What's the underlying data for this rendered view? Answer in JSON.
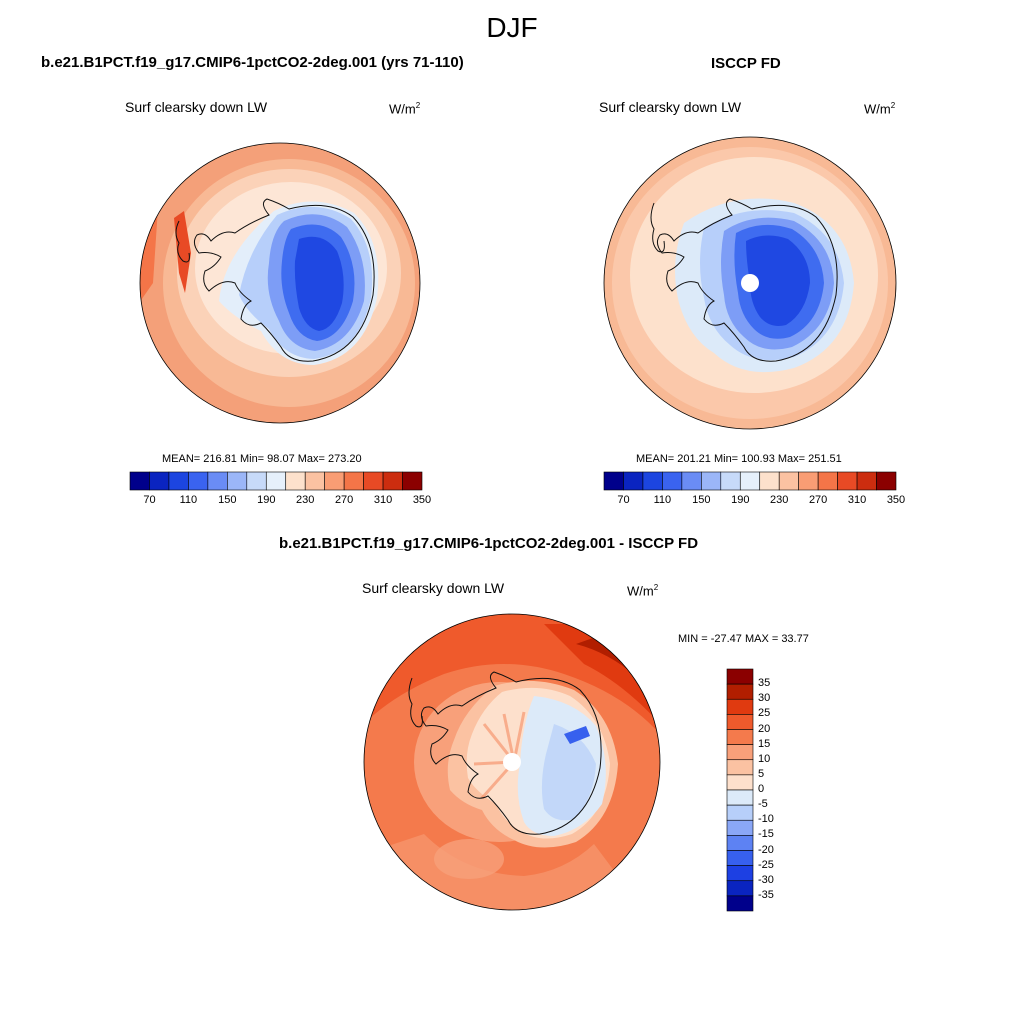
{
  "season": "DJF",
  "colors": {
    "abs_scale": [
      "#00008b",
      "#0a24c0",
      "#1c45e0",
      "#3a63f0",
      "#6a8cf5",
      "#9bb6f8",
      "#c7daf9",
      "#e6f0fb",
      "#fde1cc",
      "#fbc2a2",
      "#f99d74",
      "#f47548",
      "#e84a25",
      "#cc2d0f",
      "#8b0000"
    ],
    "diff_scale": [
      "#00008b",
      "#0a24c0",
      "#1d40e3",
      "#3760ee",
      "#5d82f3",
      "#8aa7f7",
      "#b7cffa",
      "#dceaf9",
      "#fde0cc",
      "#fbc2a2",
      "#f8a07a",
      "#f47a4c",
      "#ef5a2c",
      "#e03a10",
      "#b11e00",
      "#8b0000"
    ],
    "coast": "#111111"
  },
  "panels": [
    {
      "id": "model",
      "title": "b.e21.B1PCT.f19_g17.CMIP6-1pctCO2-2deg.001 (yrs 71-110)",
      "variable": "Surf clearsky down LW",
      "unit_base": "W/m",
      "unit_sup": "2",
      "stats": "MEAN= 216.81  Min=  98.07  Max= 273.20",
      "colorbar_ticks": [
        "70",
        "110",
        "150",
        "190",
        "230",
        "270",
        "310",
        "350"
      ]
    },
    {
      "id": "obs",
      "title": "ISCCP FD",
      "variable": "Surf clearsky down LW",
      "unit_base": "W/m",
      "unit_sup": "2",
      "stats": "MEAN= 201.21  Min= 100.93  Max= 251.51",
      "colorbar_ticks": [
        "70",
        "110",
        "150",
        "190",
        "230",
        "270",
        "310",
        "350"
      ]
    }
  ],
  "diff": {
    "title": "b.e21.B1PCT.f19_g17.CMIP6-1pctCO2-2deg.001 - ISCCP FD",
    "variable": "Surf clearsky down LW",
    "unit_base": "W/m",
    "unit_sup": "2",
    "stats": "MIN = -27.47 MAX =  33.77",
    "colorbar_ticks": [
      "35",
      "30",
      "25",
      "20",
      "15",
      "10",
      "5",
      "0",
      "-5",
      "-10",
      "-15",
      "-20",
      "-25",
      "-30",
      "-35"
    ]
  }
}
